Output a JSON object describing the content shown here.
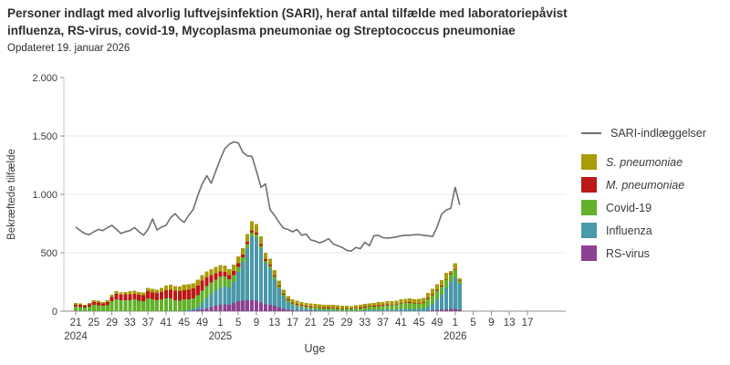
{
  "header": {
    "title_line1": "Personer indlagt med alvorlig luftvejsinfektion (SARI), heraf antal tilfælde med laboratoriepåvist",
    "title_line2": "influenza, RS-virus, covid-19, Mycoplasma pneumoniae og Streptococcus pneumoniae",
    "subtitle": "Opdateret 19. januar 2026"
  },
  "axes": {
    "y_label": "Bekræftede tilfælde",
    "x_label": "Uge",
    "y_tick_labels": [
      "0",
      "500",
      "1.000",
      "1.500",
      "2.000"
    ],
    "y_tick_values": [
      0,
      500,
      1000,
      1500,
      2000
    ],
    "y_gridline_values": [
      500,
      1000,
      1500
    ],
    "x_ticks": [
      {
        "label": "21",
        "i": 0
      },
      {
        "label": "25",
        "i": 4
      },
      {
        "label": "29",
        "i": 8
      },
      {
        "label": "33",
        "i": 12
      },
      {
        "label": "37",
        "i": 16
      },
      {
        "label": "41",
        "i": 20
      },
      {
        "label": "45",
        "i": 24
      },
      {
        "label": "49",
        "i": 28
      },
      {
        "label": "1",
        "i": 32
      },
      {
        "label": "5",
        "i": 36
      },
      {
        "label": "9",
        "i": 40
      },
      {
        "label": "13",
        "i": 44
      },
      {
        "label": "17",
        "i": 48
      },
      {
        "label": "21",
        "i": 52
      },
      {
        "label": "25",
        "i": 56
      },
      {
        "label": "29",
        "i": 60
      },
      {
        "label": "33",
        "i": 64
      },
      {
        "label": "37",
        "i": 68
      },
      {
        "label": "41",
        "i": 72
      },
      {
        "label": "45",
        "i": 76
      },
      {
        "label": "49",
        "i": 80
      },
      {
        "label": "1",
        "i": 84
      },
      {
        "label": "5",
        "i": 88
      },
      {
        "label": "9",
        "i": 92
      },
      {
        "label": "13",
        "i": 96
      },
      {
        "label": "17",
        "i": 100
      }
    ],
    "year_labels": [
      {
        "label": "2024",
        "i": 0
      },
      {
        "label": "2025",
        "i": 32
      },
      {
        "label": "2026",
        "i": 84
      }
    ]
  },
  "legend": {
    "line_label": "SARI-indlæggelser",
    "line_color": "#6f6f6f",
    "items": [
      {
        "label": "S. pneumoniae",
        "color": "#a99b0a",
        "italic": true
      },
      {
        "label": "M. pneumoniae",
        "color": "#bb1917",
        "italic": true
      },
      {
        "label": "Covid-19",
        "color": "#63b12b",
        "italic": false
      },
      {
        "label": "Influenza",
        "color": "#4a98a9",
        "italic": false
      },
      {
        "label": "RS-virus",
        "color": "#8c4191",
        "italic": false
      }
    ]
  },
  "chart_data": {
    "type": "bar",
    "subtype": "stacked-bars-with-line-overlay",
    "title": "Personer indlagt med alvorlig luftvejsinfektion (SARI)",
    "xlabel": "Uge",
    "ylabel": "Bekræftede tilfælde",
    "ylim": [
      0,
      2000
    ],
    "grid": "horizontal",
    "legend_position": "right",
    "total_week_slots": 103,
    "stack_order_bottom_to_top": [
      "RS-virus",
      "Influenza",
      "Covid-19",
      "M. pneumoniae",
      "S. pneumoniae"
    ],
    "categories": [
      "2024-U21",
      "2024-U22",
      "2024-U23",
      "2024-U24",
      "2024-U25",
      "2024-U26",
      "2024-U27",
      "2024-U28",
      "2024-U29",
      "2024-U30",
      "2024-U31",
      "2024-U32",
      "2024-U33",
      "2024-U34",
      "2024-U35",
      "2024-U36",
      "2024-U37",
      "2024-U38",
      "2024-U39",
      "2024-U40",
      "2024-U41",
      "2024-U42",
      "2024-U43",
      "2024-U44",
      "2024-U45",
      "2024-U46",
      "2024-U47",
      "2024-U48",
      "2024-U49",
      "2024-U50",
      "2024-U51",
      "2024-U52",
      "2025-U01",
      "2025-U02",
      "2025-U03",
      "2025-U04",
      "2025-U05",
      "2025-U06",
      "2025-U07",
      "2025-U08",
      "2025-U09",
      "2025-U10",
      "2025-U11",
      "2025-U12",
      "2025-U13",
      "2025-U14",
      "2025-U15",
      "2025-U16",
      "2025-U17",
      "2025-U18",
      "2025-U19",
      "2025-U20",
      "2025-U21",
      "2025-U22",
      "2025-U23",
      "2025-U24",
      "2025-U25",
      "2025-U26",
      "2025-U27",
      "2025-U28",
      "2025-U29",
      "2025-U30",
      "2025-U31",
      "2025-U32",
      "2025-U33",
      "2025-U34",
      "2025-U35",
      "2025-U36",
      "2025-U37",
      "2025-U38",
      "2025-U39",
      "2025-U40",
      "2025-U41",
      "2025-U42",
      "2025-U43",
      "2025-U44",
      "2025-U45",
      "2025-U46",
      "2025-U47",
      "2025-U48",
      "2025-U49",
      "2025-U50",
      "2025-U51",
      "2025-U52",
      "2026-U01",
      "2026-U02"
    ],
    "series": [
      {
        "name": "RS-virus",
        "color": "#8c4191",
        "values": [
          0,
          0,
          0,
          0,
          0,
          0,
          0,
          0,
          0,
          0,
          0,
          0,
          0,
          0,
          0,
          0,
          0,
          0,
          0,
          0,
          0,
          0,
          0,
          0,
          0,
          0,
          5,
          10,
          15,
          25,
          35,
          45,
          55,
          60,
          55,
          70,
          85,
          90,
          95,
          95,
          90,
          75,
          60,
          55,
          45,
          30,
          20,
          12,
          8,
          5,
          4,
          3,
          2,
          2,
          1,
          1,
          1,
          0,
          0,
          0,
          0,
          0,
          0,
          0,
          0,
          0,
          0,
          0,
          0,
          0,
          0,
          0,
          0,
          0,
          0,
          0,
          0,
          0,
          5,
          8,
          10,
          12,
          15,
          18,
          20,
          10
        ]
      },
      {
        "name": "Influenza",
        "color": "#4a98a9",
        "values": [
          0,
          0,
          0,
          0,
          0,
          0,
          0,
          0,
          0,
          0,
          0,
          0,
          0,
          0,
          0,
          0,
          0,
          0,
          0,
          0,
          0,
          0,
          0,
          0,
          5,
          10,
          15,
          30,
          55,
          85,
          110,
          130,
          145,
          150,
          150,
          180,
          250,
          330,
          445,
          550,
          540,
          460,
          350,
          310,
          230,
          165,
          105,
          65,
          45,
          35,
          28,
          22,
          15,
          12,
          10,
          8,
          7,
          6,
          5,
          5,
          4,
          4,
          5,
          5,
          8,
          10,
          10,
          12,
          12,
          14,
          12,
          14,
          18,
          20,
          20,
          18,
          18,
          22,
          35,
          60,
          95,
          130,
          185,
          235,
          265,
          220
        ]
      },
      {
        "name": "Covid-19",
        "color": "#63b12b",
        "values": [
          38,
          35,
          30,
          40,
          55,
          50,
          45,
          50,
          85,
          100,
          95,
          95,
          95,
          100,
          90,
          85,
          110,
          100,
          95,
          100,
          110,
          110,
          95,
          90,
          95,
          90,
          90,
          95,
          105,
          105,
          100,
          95,
          95,
          85,
          70,
          60,
          45,
          40,
          35,
          25,
          25,
          25,
          20,
          20,
          20,
          15,
          15,
          15,
          15,
          15,
          16,
          15,
          15,
          16,
          15,
          15,
          16,
          16,
          15,
          15,
          14,
          14,
          18,
          20,
          25,
          28,
          30,
          32,
          36,
          38,
          38,
          40,
          48,
          50,
          52,
          48,
          46,
          48,
          65,
          70,
          72,
          70,
          68,
          65,
          65,
          28
        ]
      },
      {
        "name": "M. pneumoniae",
        "color": "#bb1917",
        "values": [
          18,
          18,
          15,
          18,
          25,
          25,
          22,
          28,
          38,
          48,
          45,
          48,
          50,
          50,
          50,
          50,
          60,
          60,
          60,
          65,
          70,
          75,
          80,
          80,
          80,
          85,
          85,
          85,
          85,
          75,
          65,
          55,
          45,
          40,
          35,
          35,
          30,
          25,
          20,
          20,
          15,
          15,
          15,
          15,
          10,
          10,
          10,
          8,
          7,
          8,
          7,
          7,
          8,
          7,
          7,
          6,
          7,
          7,
          7,
          5,
          5,
          4,
          5,
          5,
          5,
          4,
          5,
          5,
          6,
          5,
          6,
          6,
          6,
          5,
          6,
          4,
          4,
          5,
          8,
          7,
          6,
          5,
          5,
          7,
          5,
          2
        ]
      },
      {
        "name": "S. pneumoniae",
        "color": "#a99b0a",
        "values": [
          14,
          12,
          10,
          12,
          15,
          15,
          13,
          17,
          17,
          22,
          20,
          22,
          25,
          25,
          25,
          25,
          30,
          30,
          30,
          35,
          40,
          40,
          40,
          40,
          45,
          45,
          45,
          50,
          50,
          50,
          50,
          55,
          55,
          55,
          50,
          55,
          60,
          55,
          65,
          80,
          75,
          65,
          55,
          50,
          45,
          40,
          35,
          30,
          25,
          27,
          25,
          25,
          25,
          25,
          25,
          25,
          25,
          25,
          22,
          22,
          22,
          22,
          24,
          24,
          25,
          25,
          26,
          28,
          26,
          28,
          28,
          30,
          30,
          30,
          30,
          30,
          37,
          40,
          42,
          45,
          47,
          50,
          55,
          20,
          55,
          20
        ]
      }
    ],
    "line_series": {
      "name": "SARI-indlæggelser",
      "color": "#6f6f6f",
      "values": [
        720,
        690,
        665,
        655,
        680,
        700,
        690,
        715,
        735,
        700,
        665,
        680,
        690,
        715,
        680,
        650,
        700,
        790,
        695,
        720,
        735,
        800,
        835,
        790,
        760,
        820,
        870,
        990,
        1090,
        1160,
        1095,
        1200,
        1300,
        1390,
        1430,
        1450,
        1440,
        1360,
        1330,
        1325,
        1200,
        1060,
        1090,
        870,
        820,
        760,
        710,
        700,
        680,
        700,
        650,
        660,
        610,
        600,
        585,
        600,
        620,
        575,
        560,
        545,
        520,
        515,
        545,
        535,
        590,
        560,
        645,
        650,
        630,
        625,
        630,
        635,
        645,
        650,
        650,
        655,
        655,
        650,
        645,
        640,
        720,
        830,
        865,
        880,
        1060,
        910
      ]
    }
  }
}
